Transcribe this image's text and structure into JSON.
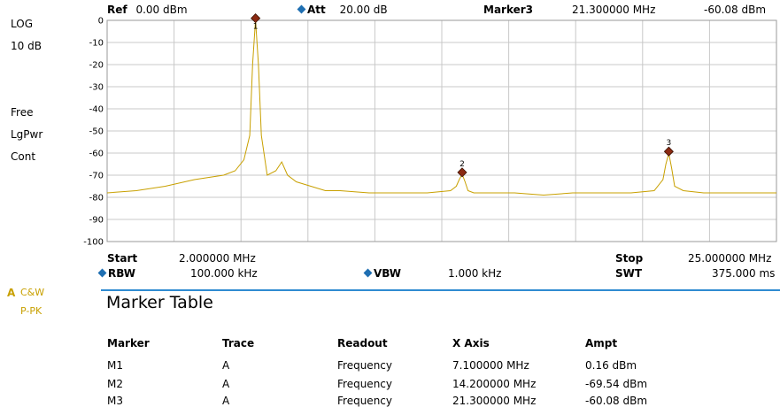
{
  "header": {
    "ref_label": "Ref",
    "ref_value": "0.00 dBm",
    "att_label": "Att",
    "att_value": "20.00 dB",
    "marker_label": "Marker3",
    "marker_freq": "21.300000 MHz",
    "marker_ampt": "-60.08 dBm"
  },
  "left_panel": {
    "scale_type": "LOG",
    "scale_div": "10 dB",
    "trigger": "Free",
    "detector_mode": "LgPwr",
    "sweep_mode": "Cont",
    "trace_letter": "A",
    "trace_mode": "C&W",
    "trace_detector": "P-PK"
  },
  "footer": {
    "start_label": "Start",
    "start_value": "2.000000 MHz",
    "stop_label": "Stop",
    "stop_value": "25.000000 MHz",
    "rbw_label": "RBW",
    "rbw_value": "100.000 kHz",
    "vbw_label": "VBW",
    "vbw_value": "1.000 kHz",
    "swt_label": "SWT",
    "swt_value": "375.000 ms"
  },
  "marker_table": {
    "title": "Marker Table",
    "columns": [
      "Marker",
      "Trace",
      "Readout",
      "X Axis",
      "Ampt"
    ],
    "rows": [
      [
        "M1",
        "A",
        "Frequency",
        "7.100000 MHz",
        "0.16 dBm"
      ],
      [
        "M2",
        "A",
        "Frequency",
        "14.200000 MHz",
        "-69.54 dBm"
      ],
      [
        "M3",
        "A",
        "Frequency",
        "21.300000 MHz",
        "-60.08 dBm"
      ]
    ]
  },
  "colors": {
    "trace": "#c8a000",
    "marker": "#8b2a12",
    "accent": "#1f6fb2",
    "grid": "#c8c8c8"
  },
  "chart_data": {
    "type": "line",
    "x_unit": "MHz",
    "y_unit": "dBm",
    "xlim": [
      2,
      25
    ],
    "ylim": [
      -100,
      0
    ],
    "y_ticks": [
      "0",
      "-10",
      "-20",
      "-30",
      "-40",
      "-50",
      "-60",
      "-70",
      "-80",
      "-90",
      "-100"
    ],
    "grid": true,
    "series": [
      {
        "x": [
          2.0,
          3.0,
          4.0,
          5.0,
          5.5,
          6.0,
          6.4,
          6.7,
          6.9,
          7.0,
          7.1,
          7.2,
          7.3,
          7.5,
          7.8,
          8.0,
          8.2,
          8.5,
          9.0,
          9.5,
          10.0,
          11.0,
          12.0,
          13.0,
          13.8,
          14.0,
          14.1,
          14.2,
          14.3,
          14.4,
          14.6,
          15.0,
          16.0,
          17.0,
          18.0,
          19.0,
          20.0,
          20.8,
          21.1,
          21.2,
          21.3,
          21.4,
          21.5,
          21.8,
          22.5,
          23.5,
          25.0
        ],
        "y": [
          -78,
          -77,
          -75,
          -72,
          -71,
          -70,
          -68,
          -63,
          -52,
          -20,
          0.16,
          -20,
          -52,
          -70,
          -68,
          -64,
          -70,
          -73,
          -75,
          -77,
          -77,
          -78,
          -78,
          -78,
          -77,
          -75,
          -72,
          -69.54,
          -73,
          -77,
          -78,
          -78,
          -78,
          -79,
          -78,
          -78,
          -78,
          -77,
          -72,
          -65,
          -60.08,
          -67,
          -75,
          -77,
          -78,
          -78,
          -78
        ]
      }
    ],
    "markers": [
      {
        "label": "1",
        "x": 7.1,
        "y": 0.16
      },
      {
        "label": "2",
        "x": 14.2,
        "y": -69.54
      },
      {
        "label": "3",
        "x": 21.3,
        "y": -60.08
      }
    ]
  }
}
